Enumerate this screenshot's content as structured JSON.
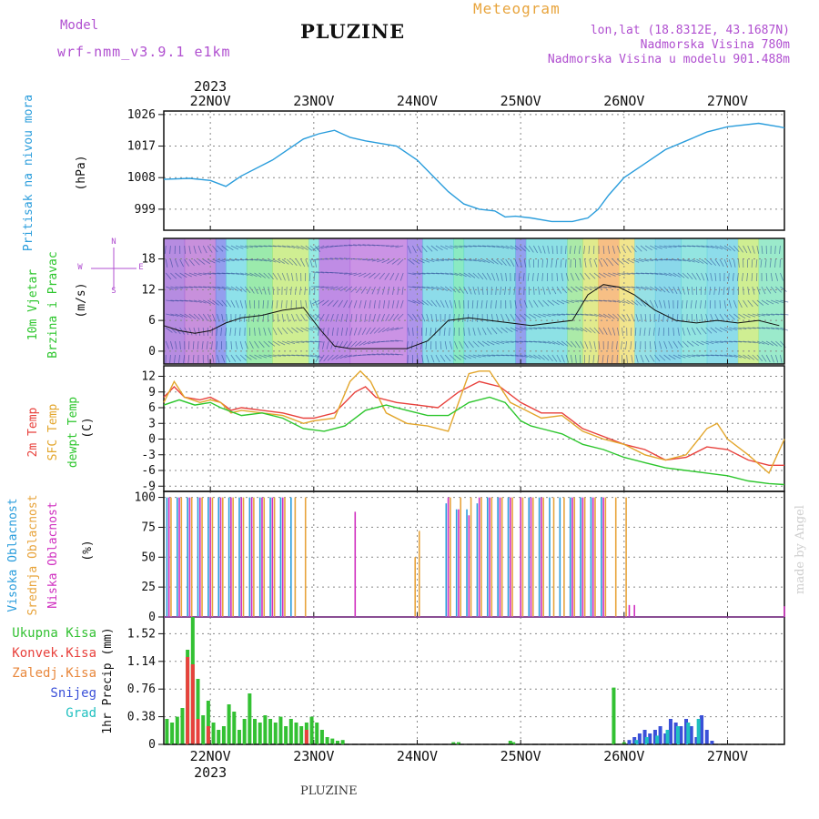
{
  "header": {
    "model_label": "Model",
    "model_name": "wrf-nmm_v3.9.1 e1km",
    "title": "PLUZINE",
    "meteogram_label": "Meteogram",
    "lonlat": "lon,lat (18.8312E, 43.1687N)",
    "elevation": "Nadmorska Visina 780m",
    "model_elevation": "Nadmorska Visina u modelu 901.488m",
    "footer_title": "PLUZINE",
    "credit": "made by Angel"
  },
  "colors": {
    "purple": "#b04fd0",
    "orange": "#e8a43c",
    "pressure": "#2a9ddc",
    "temp2m": "#e8413c",
    "sfc": "#e3a62c",
    "dewpt": "#2dc62d",
    "grid": "#888888"
  },
  "time_axis": {
    "top_year": "2023",
    "bottom_year": "2023",
    "ticks": [
      "22NOV",
      "23NOV",
      "24NOV",
      "25NOV",
      "26NOV",
      "27NOV"
    ]
  },
  "chart_data": [
    {
      "type": "line",
      "panel": "pressure",
      "ylabel_side": "Pritisak na nivou mora",
      "ylabel_unit": "(hPa)",
      "yticks": [
        "999",
        "1008",
        "1017",
        "1026"
      ],
      "ylim": [
        993,
        1027
      ],
      "x_units": "days from 21NOV 00UTC",
      "x": [
        0.55,
        0.8,
        1.0,
        1.15,
        1.3,
        1.6,
        1.9,
        2.05,
        2.2,
        2.35,
        2.5,
        2.8,
        3.0,
        3.15,
        3.3,
        3.45,
        3.6,
        3.75,
        3.85,
        3.95,
        4.1,
        4.3,
        4.5,
        4.65,
        4.75,
        4.85,
        5.0,
        5.2,
        5.4,
        5.6,
        5.8,
        6.0,
        6.3,
        6.5,
        6.55
      ],
      "values": [
        1007.5,
        1007.8,
        1007.2,
        1005.5,
        1008.5,
        1013,
        1019,
        1020.5,
        1021.5,
        1019.5,
        1018.5,
        1017,
        1013,
        1008.5,
        1004,
        1000.5,
        999,
        998.5,
        996.8,
        997,
        996.5,
        995.5,
        995.5,
        996.5,
        999,
        1003,
        1008,
        1012,
        1016,
        1018.5,
        1021,
        1022.5,
        1023.5,
        1022.5,
        1022.2
      ],
      "grid": true
    },
    {
      "type": "line",
      "panel": "wind",
      "ylabel_side": [
        "10m Vjetar",
        "Brzina i Pravac"
      ],
      "ylabel_unit": "(m/s)",
      "direction_legend": [
        "N",
        "E",
        "S",
        "W"
      ],
      "yticks": [
        "0",
        "6",
        "12",
        "18"
      ],
      "ylim": [
        -2.5,
        22
      ],
      "x_units": "days from 21NOV 00UTC",
      "series": [
        {
          "x": [
            0.55,
            0.7,
            0.85,
            1.0,
            1.15,
            1.3,
            1.5,
            1.7,
            1.9,
            2.05,
            2.2,
            2.35,
            2.5,
            2.7,
            2.9,
            3.1,
            3.3,
            3.5,
            3.7,
            3.9,
            4.1,
            4.3,
            4.5,
            4.65,
            4.8,
            4.95,
            5.1,
            5.3,
            5.5,
            5.7,
            5.9,
            6.1,
            6.3,
            6.5
          ],
          "values": [
            5,
            4,
            3.5,
            4,
            5.5,
            6.5,
            7,
            8,
            8.5,
            4.5,
            1,
            0.5,
            0.5,
            0.5,
            0.5,
            2,
            6,
            6.5,
            6,
            5.5,
            5,
            5.5,
            6,
            11,
            13,
            12.5,
            11,
            8,
            6,
            5.5,
            6,
            5.5,
            6,
            5
          ]
        }
      ],
      "grid": true
    },
    {
      "type": "line",
      "panel": "temperature",
      "ylabel_side": [
        "2m Temp",
        "SFC Temp",
        "dewpt Temp"
      ],
      "ylabel_unit": "(C)",
      "yticks": [
        "-9",
        "-6",
        "-3",
        "0",
        "3",
        "6",
        "9",
        "12"
      ],
      "ylim": [
        -10,
        14
      ],
      "x_units": "days from 21NOV 00UTC",
      "series": [
        {
          "name": "2m Temp",
          "x": [
            0.55,
            0.65,
            0.75,
            0.9,
            1.0,
            1.1,
            1.2,
            1.3,
            1.5,
            1.7,
            1.9,
            2.0,
            2.2,
            2.4,
            2.5,
            2.6,
            2.8,
            3.0,
            3.2,
            3.4,
            3.6,
            3.8,
            4.0,
            4.2,
            4.4,
            4.6,
            4.8,
            5.0,
            5.2,
            5.4,
            5.6,
            5.8,
            6.0,
            6.2,
            6.4,
            6.55
          ],
          "values": [
            8,
            10,
            8,
            7.5,
            8,
            7,
            5.5,
            6,
            5.5,
            5,
            4,
            4,
            5,
            9,
            10,
            8,
            7,
            6.5,
            6,
            9,
            11,
            10,
            7,
            5,
            5,
            2,
            0.5,
            -1,
            -2,
            -4,
            -3.5,
            -1.5,
            -2,
            -4,
            -5,
            -5
          ]
        },
        {
          "name": "SFC Temp",
          "x": [
            0.55,
            0.65,
            0.75,
            0.9,
            1.0,
            1.1,
            1.2,
            1.3,
            1.5,
            1.7,
            1.9,
            2.0,
            2.2,
            2.35,
            2.45,
            2.55,
            2.7,
            2.9,
            3.1,
            3.3,
            3.5,
            3.6,
            3.7,
            3.8,
            3.9,
            4.0,
            4.1,
            4.2,
            4.4,
            4.6,
            4.8,
            5.0,
            5.2,
            5.4,
            5.6,
            5.8,
            5.9,
            6.0,
            6.2,
            6.4,
            6.55
          ],
          "values": [
            7,
            11,
            8,
            7,
            7.5,
            7,
            5,
            5.5,
            5,
            4.5,
            3,
            3.5,
            4,
            11,
            13,
            11,
            5,
            3,
            2.5,
            1.5,
            12.5,
            13,
            13,
            10,
            7,
            6,
            5,
            4,
            4.5,
            1.5,
            0,
            -1,
            -3,
            -4,
            -3,
            2,
            3,
            0,
            -3,
            -6.5,
            0
          ]
        },
        {
          "name": "dewpt Temp",
          "x": [
            0.55,
            0.7,
            0.85,
            1.0,
            1.1,
            1.3,
            1.5,
            1.7,
            1.9,
            2.1,
            2.3,
            2.5,
            2.7,
            2.9,
            3.1,
            3.3,
            3.5,
            3.7,
            3.85,
            4.0,
            4.1,
            4.2,
            4.4,
            4.6,
            4.8,
            5.0,
            5.2,
            5.4,
            5.6,
            5.8,
            6.0,
            6.2,
            6.4,
            6.55
          ],
          "values": [
            6.5,
            7.5,
            6.5,
            7,
            6,
            4.5,
            5,
            4,
            2,
            1.5,
            2.5,
            5.5,
            6.5,
            5.5,
            4.5,
            4.5,
            7,
            8,
            7,
            3.5,
            2.5,
            2,
            1,
            -1,
            -2,
            -3.5,
            -4.5,
            -5.5,
            -6,
            -6.5,
            -7,
            -8,
            -8.5,
            -8.7
          ]
        }
      ],
      "grid": true
    },
    {
      "type": "bar",
      "panel": "cloud",
      "ylabel_side": [
        "Visoka Oblacnost",
        "Srednja Oblacnost",
        "Niska Oblacnost"
      ],
      "ylabel_unit": "(%)",
      "yticks": [
        "0",
        "25",
        "50",
        "75",
        "100"
      ],
      "ylim": [
        0,
        105
      ],
      "x_units": "days from 21NOV 00UTC",
      "series": [
        {
          "name": "Visoka Oblacnost",
          "x": [
            0.58,
            0.68,
            0.78,
            0.88,
            0.98,
            1.08,
            1.18,
            1.28,
            1.38,
            1.48,
            1.58,
            1.68,
            1.78,
            3.28,
            3.38,
            3.48,
            3.58,
            3.68,
            3.78,
            3.88,
            4.08,
            4.18,
            4.28,
            4.38,
            4.48,
            4.58,
            4.68,
            4.78
          ],
          "values": [
            100,
            100,
            100,
            100,
            100,
            100,
            100,
            100,
            100,
            100,
            100,
            100,
            100,
            95,
            90,
            90,
            95,
            100,
            100,
            100,
            100,
            100,
            100,
            100,
            100,
            100,
            100,
            100
          ]
        },
        {
          "name": "Srednja Oblacnost",
          "x": [
            0.62,
            0.72,
            0.82,
            0.92,
            1.02,
            1.12,
            1.22,
            1.32,
            1.42,
            1.52,
            1.62,
            1.72,
            1.82,
            1.92,
            2.98,
            3.02,
            3.32,
            3.42,
            3.52,
            3.62,
            3.72,
            3.82,
            3.92,
            4.02,
            4.12,
            4.22,
            4.32,
            4.42,
            4.52,
            4.62,
            4.72,
            4.82,
            4.92,
            5.02
          ],
          "values": [
            100,
            100,
            100,
            100,
            100,
            100,
            100,
            100,
            100,
            100,
            100,
            100,
            100,
            100,
            50,
            72,
            100,
            100,
            100,
            100,
            100,
            100,
            100,
            100,
            100,
            100,
            100,
            100,
            100,
            100,
            100,
            100,
            100,
            100
          ]
        },
        {
          "name": "Niska Oblacnost",
          "x": [
            0.6,
            0.7,
            0.8,
            0.9,
            1.0,
            1.1,
            1.2,
            1.3,
            1.4,
            1.5,
            1.6,
            1.7,
            2.4,
            3.3,
            3.4,
            3.5,
            3.6,
            3.7,
            3.8,
            3.9,
            4.0,
            4.1,
            4.2,
            4.5,
            4.6,
            4.7,
            4.8,
            5.05,
            5.1,
            6.55
          ],
          "values": [
            100,
            100,
            100,
            100,
            100,
            100,
            100,
            100,
            100,
            100,
            100,
            100,
            88,
            100,
            90,
            85,
            100,
            100,
            100,
            100,
            100,
            100,
            100,
            100,
            100,
            100,
            100,
            10,
            10,
            9
          ]
        }
      ],
      "grid": true
    },
    {
      "type": "bar",
      "panel": "precip",
      "legend": [
        "Ukupna Kisa",
        "Konvek.Kisa",
        "Zaledj.Kisa",
        "Snijeg",
        "Grad"
      ],
      "ylabel_side": "1hr Precip (mm)",
      "yticks": [
        "0",
        "0.38",
        "0.76",
        "1.14",
        "1.52"
      ],
      "ylim": [
        0,
        1.75
      ],
      "x_units": "days from 21NOV 00UTC",
      "series": [
        {
          "name": "Ukupna Kisa",
          "x": [
            0.58,
            0.63,
            0.68,
            0.73,
            0.78,
            0.83,
            0.88,
            0.93,
            0.98,
            1.03,
            1.08,
            1.13,
            1.18,
            1.23,
            1.28,
            1.33,
            1.38,
            1.43,
            1.48,
            1.53,
            1.58,
            1.63,
            1.68,
            1.73,
            1.78,
            1.83,
            1.88,
            1.93,
            1.98,
            2.03,
            2.08,
            2.13,
            2.18,
            2.23,
            2.28,
            3.35,
            3.4,
            3.9,
            3.93,
            4.9,
            5.0,
            5.05
          ],
          "values": [
            0.35,
            0.3,
            0.38,
            0.5,
            1.3,
            1.75,
            0.9,
            0.4,
            0.6,
            0.3,
            0.2,
            0.25,
            0.55,
            0.45,
            0.2,
            0.35,
            0.7,
            0.35,
            0.3,
            0.4,
            0.35,
            0.3,
            0.38,
            0.25,
            0.35,
            0.3,
            0.25,
            0.3,
            0.38,
            0.3,
            0.2,
            0.1,
            0.08,
            0.05,
            0.06,
            0.03,
            0.03,
            0.05,
            0.03,
            0.78,
            0.03,
            0.03
          ]
        },
        {
          "name": "Konvek.Kisa",
          "x": [
            0.78,
            0.83,
            0.88,
            0.98,
            1.93
          ],
          "values": [
            1.2,
            1.1,
            0.35,
            0.25,
            0.2
          ]
        },
        {
          "name": "Snijeg",
          "x": [
            5.05,
            5.1,
            5.15,
            5.2,
            5.25,
            5.3,
            5.35,
            5.4,
            5.45,
            5.5,
            5.55,
            5.6,
            5.65,
            5.7,
            5.75,
            5.8,
            5.85
          ],
          "values": [
            0.06,
            0.1,
            0.15,
            0.2,
            0.15,
            0.2,
            0.25,
            0.15,
            0.35,
            0.3,
            0.25,
            0.35,
            0.25,
            0.1,
            0.4,
            0.2,
            0.05
          ]
        },
        {
          "name": "Grad",
          "x": [
            5.12,
            5.22,
            5.32,
            5.42,
            5.52,
            5.62,
            5.72
          ],
          "values": [
            0.06,
            0.1,
            0.12,
            0.2,
            0.25,
            0.3,
            0.35
          ]
        }
      ],
      "grid": true
    }
  ]
}
